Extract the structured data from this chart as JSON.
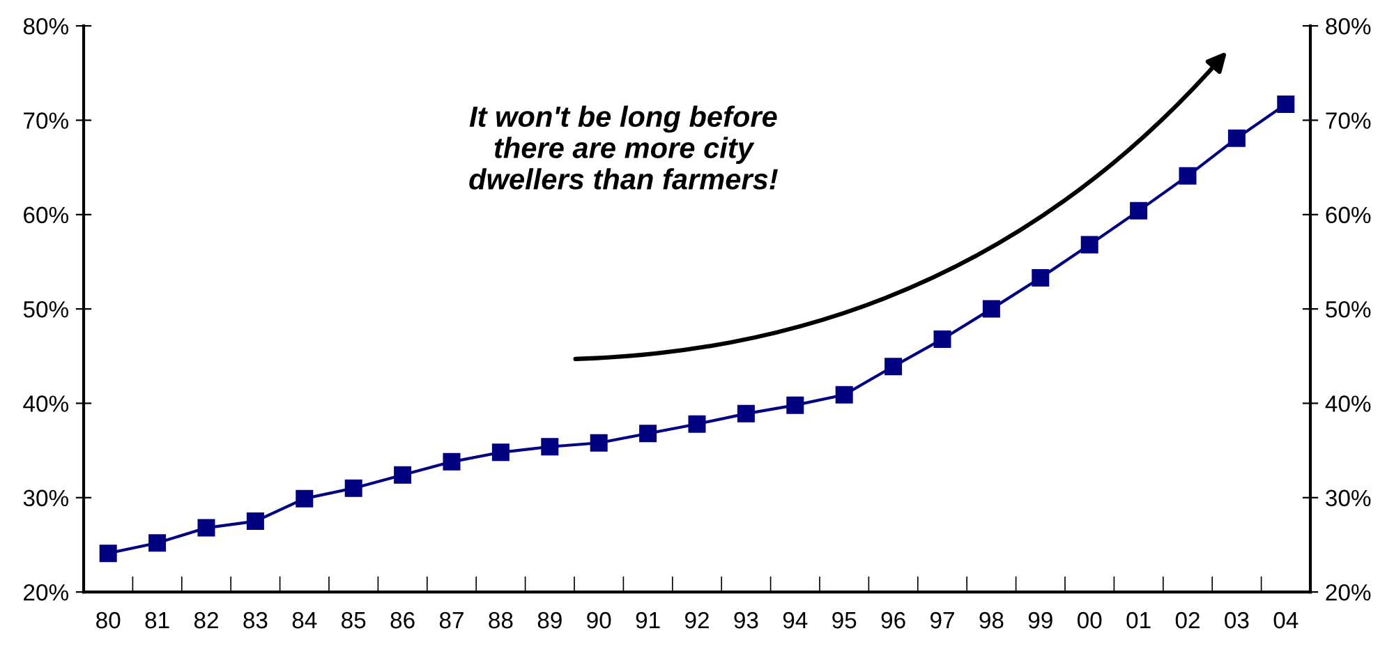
{
  "chart_data": {
    "type": "line",
    "categories": [
      "80",
      "81",
      "82",
      "83",
      "84",
      "85",
      "86",
      "87",
      "88",
      "89",
      "90",
      "91",
      "92",
      "93",
      "94",
      "95",
      "96",
      "97",
      "98",
      "99",
      "00",
      "01",
      "02",
      "03",
      "04"
    ],
    "series": [
      {
        "color": "#000080",
        "values": [
          24.1,
          25.2,
          26.8,
          27.5,
          29.9,
          31.0,
          32.4,
          33.8,
          34.8,
          35.4,
          35.8,
          36.8,
          37.8,
          38.9,
          39.8,
          40.9,
          43.9,
          46.8,
          50.0,
          53.3,
          56.8,
          60.4,
          64.1,
          68.1,
          71.7
        ]
      }
    ],
    "ylim": [
      20,
      80
    ],
    "yticks": [
      {
        "value": 20,
        "label": "20%"
      },
      {
        "value": 30,
        "label": "30%"
      },
      {
        "value": 40,
        "label": "40%"
      },
      {
        "value": 50,
        "label": "50%"
      },
      {
        "value": 60,
        "label": "60%"
      },
      {
        "value": 70,
        "label": "70%"
      },
      {
        "value": 80,
        "label": "80%"
      }
    ],
    "y2lim": [
      20,
      80
    ],
    "y2ticks": [
      {
        "value": 20,
        "label": "20%"
      },
      {
        "value": 30,
        "label": "30%"
      },
      {
        "value": 40,
        "label": "40%"
      },
      {
        "value": 50,
        "label": "50%"
      },
      {
        "value": 60,
        "label": "60%"
      },
      {
        "value": 70,
        "label": "70%"
      },
      {
        "value": 80,
        "label": "80%"
      }
    ],
    "annotations": [
      "It won't be long before\nthere are more city\ndwellers than farmers!"
    ],
    "marker": "square",
    "line_style": "solid",
    "grid": false,
    "legend": false
  }
}
